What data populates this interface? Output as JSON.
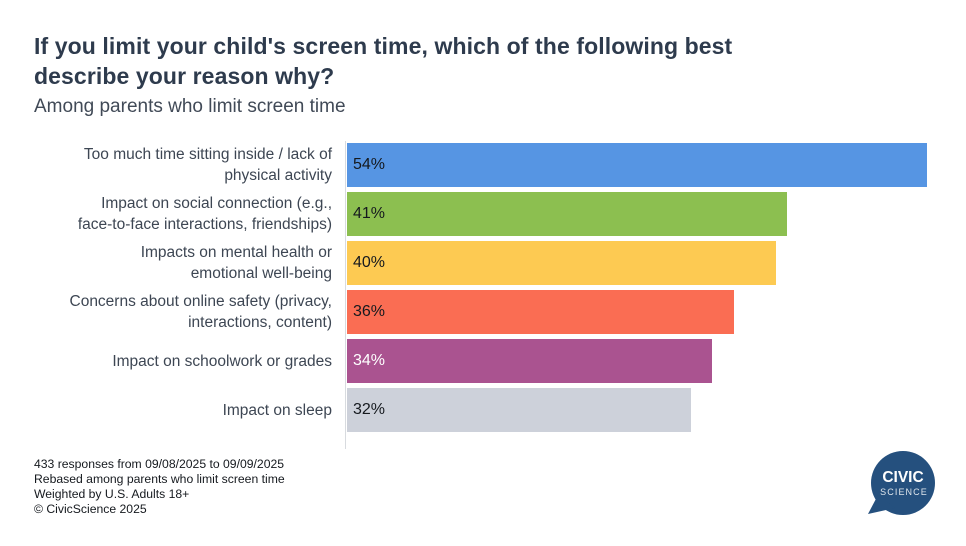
{
  "header": {
    "title": "If you limit your child's screen time, which of the following best describe your reason why?",
    "subtitle": "Among parents who limit screen time"
  },
  "chart_data": {
    "type": "bar",
    "orientation": "horizontal",
    "title": "If you limit your child's screen time, which of the following best describe your reason why?",
    "subtitle": "Among parents who limit screen time",
    "categories": [
      "Too much time sitting inside / lack of physical activity",
      "Impact on social connection (e.g., face-to-face interactions, friendships)",
      "Impacts on mental health or emotional well-being",
      "Concerns about online safety (privacy, interactions, content)",
      "Impact on schoolwork or grades",
      "Impact on sleep"
    ],
    "display_labels": [
      "Too much time sitting inside / lack of\nphysical activity",
      "Impact on social connection (e.g.,\nface-to-face interactions, friendships)",
      "Impacts on mental health or\nemotional well-being",
      "Concerns about online safety (privacy,\ninteractions, content)",
      "Impact on schoolwork or grades",
      "Impact on sleep"
    ],
    "values": [
      54,
      41,
      40,
      36,
      34,
      32
    ],
    "value_labels": [
      "54%",
      "41%",
      "40%",
      "36%",
      "34%",
      "32%"
    ],
    "bar_colors": [
      "#5695e3",
      "#8cbf50",
      "#fdca52",
      "#fa6d53",
      "#aa5390",
      "#cdd1da"
    ],
    "value_text_colors": [
      "#15191e",
      "#15191e",
      "#15191e",
      "#15191e",
      "#ffffff",
      "#15191e"
    ],
    "xlim": [
      0,
      54.3
    ],
    "grid": false,
    "legend": false,
    "axis_line_color": "#d8dbdf"
  },
  "footer": {
    "lines": [
      "433 responses from 09/08/2025 to 09/09/2025",
      "Rebased among parents who limit screen time",
      "Weighted by U.S. Adults 18+",
      "© CivicScience 2025"
    ]
  },
  "logo": {
    "line1": "CIVIC",
    "line2": "SCIENCE",
    "color": "#25507e",
    "text_color": "#ffffff"
  }
}
